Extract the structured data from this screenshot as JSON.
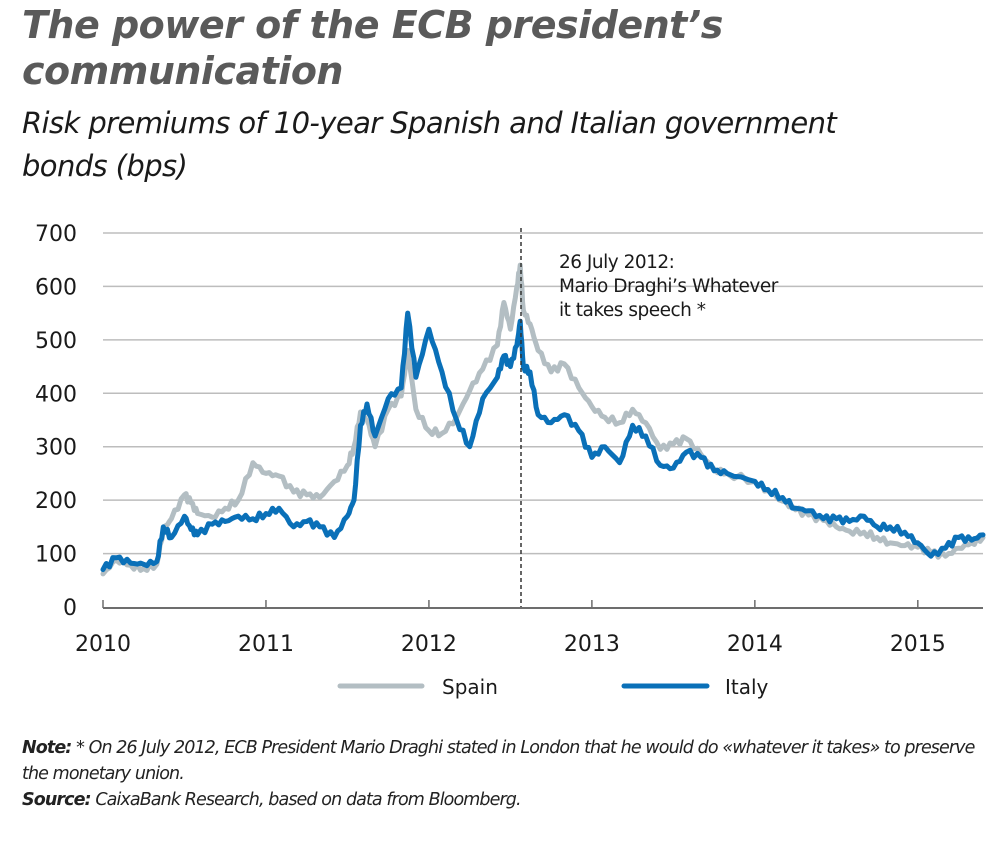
{
  "title": "The power of the ECB president’s communication",
  "subtitle": "Risk premiums of 10-year Spanish and Italian government bonds (bps)",
  "annotation": {
    "lines": [
      "26 July 2012:",
      "Mario Draghi’s Whatever",
      "it takes speech *"
    ],
    "date_value": 2012.565
  },
  "note": {
    "label": "Note:",
    "text": " * On 26 July 2012, ECB President Mario Draghi stated in London that he would do «whatever it takes» to preserve the monetary union."
  },
  "source": {
    "label": "Source:",
    "text": " CaixaBank Research, based on data from Bloomberg."
  },
  "colors": {
    "spain": "#b3bec3",
    "italy": "#0a70b8",
    "grid": "#bdbdbd",
    "axis": "#6d6d6d",
    "dashed": "#333333"
  },
  "chart_data": {
    "type": "line",
    "title": "Risk premiums of 10-year Spanish and Italian government bonds (bps)",
    "xlabel": "",
    "ylabel": "bps",
    "xlim": [
      2010,
      2015.4
    ],
    "ylim": [
      0,
      700
    ],
    "yticks": [
      0,
      100,
      200,
      300,
      400,
      500,
      600,
      700
    ],
    "xticks": [
      2010,
      2011,
      2012,
      2013,
      2014,
      2015
    ],
    "xtick_labels": [
      "2010",
      "2011",
      "2012",
      "2013",
      "2014",
      "2015"
    ],
    "grid": true,
    "legend_position": "bottom-center",
    "x": [
      2010.0,
      2010.08,
      2010.17,
      2010.25,
      2010.33,
      2010.37,
      2010.42,
      2010.5,
      2010.54,
      2010.58,
      2010.67,
      2010.75,
      2010.83,
      2010.92,
      2011.0,
      2011.08,
      2011.17,
      2011.25,
      2011.33,
      2011.42,
      2011.5,
      2011.54,
      2011.58,
      2011.62,
      2011.67,
      2011.75,
      2011.83,
      2011.87,
      2011.92,
      2012.0,
      2012.08,
      2012.17,
      2012.25,
      2012.33,
      2012.42,
      2012.46,
      2012.5,
      2012.54,
      2012.56,
      2012.58,
      2012.62,
      2012.67,
      2012.75,
      2012.83,
      2012.92,
      2013.0,
      2013.08,
      2013.17,
      2013.25,
      2013.33,
      2013.42,
      2013.5,
      2013.58,
      2013.67,
      2013.75,
      2013.83,
      2014.0,
      2014.08,
      2014.17,
      2014.25,
      2014.33,
      2014.42,
      2014.5,
      2014.58,
      2014.67,
      2014.75,
      2014.83,
      2014.92,
      2015.0,
      2015.08,
      2015.17,
      2015.25,
      2015.33,
      2015.4
    ],
    "series": [
      {
        "name": "Spain",
        "values": [
          62,
          88,
          78,
          72,
          80,
          145,
          165,
          210,
          195,
          175,
          168,
          185,
          200,
          270,
          250,
          245,
          215,
          210,
          205,
          235,
          265,
          300,
          365,
          350,
          300,
          370,
          395,
          480,
          370,
          330,
          325,
          355,
          405,
          445,
          490,
          570,
          520,
          600,
          640,
          555,
          530,
          480,
          440,
          455,
          410,
          375,
          355,
          345,
          370,
          345,
          295,
          305,
          315,
          285,
          258,
          250,
          235,
          218,
          198,
          182,
          172,
          162,
          150,
          142,
          140,
          130,
          120,
          115,
          112,
          102,
          95,
          110,
          120,
          130
        ]
      },
      {
        "name": "Italy",
        "values": [
          70,
          92,
          82,
          80,
          85,
          150,
          130,
          170,
          145,
          135,
          155,
          160,
          170,
          165,
          175,
          185,
          150,
          160,
          150,
          130,
          170,
          200,
          340,
          380,
          320,
          390,
          410,
          550,
          430,
          520,
          440,
          350,
          300,
          390,
          430,
          470,
          450,
          490,
          535,
          450,
          440,
          360,
          345,
          360,
          330,
          280,
          300,
          270,
          340,
          320,
          265,
          260,
          290,
          280,
          255,
          250,
          235,
          220,
          205,
          185,
          180,
          165,
          165,
          160,
          170,
          150,
          150,
          140,
          120,
          95,
          110,
          130,
          125,
          135
        ]
      }
    ]
  }
}
